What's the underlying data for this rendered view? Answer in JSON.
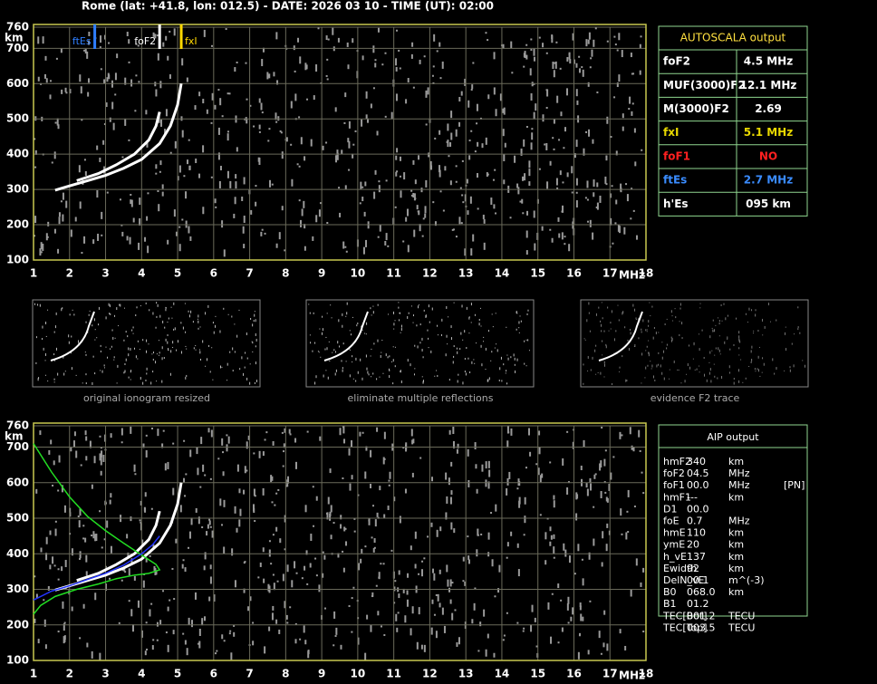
{
  "header": {
    "title": "Rome (lat: +41.8, lon: 012.5) - DATE: 2026 03 10 - TIME (UT): 02:00"
  },
  "chart_data": [
    {
      "type": "line",
      "x_label": "MHz",
      "y_label": "km",
      "xlim": [
        1,
        18
      ],
      "xticks": [
        1,
        2,
        3,
        4,
        5,
        6,
        7,
        8,
        9,
        10,
        11,
        12,
        13,
        14,
        15,
        16,
        17,
        18
      ],
      "ylim": [
        100,
        760
      ],
      "yticks": [
        100,
        200,
        300,
        400,
        500,
        600,
        700,
        760
      ],
      "grid": true,
      "markers": [
        {
          "name": "ftEs",
          "x": 2.7,
          "color": "#2f7fff"
        },
        {
          "name": "foF2",
          "x": 4.5,
          "color": "#ffffff"
        },
        {
          "name": "fxI",
          "x": 5.1,
          "color": "#ffd800"
        }
      ],
      "series": [
        {
          "color": "#ffffff",
          "x": [
            1.6,
            2,
            2.5,
            3,
            3.5,
            4,
            4.5,
            4.8,
            5,
            5.1
          ],
          "values": [
            298,
            310,
            325,
            340,
            360,
            385,
            430,
            480,
            540,
            600
          ]
        },
        {
          "color": "#ffffff",
          "x": [
            2.2,
            2.8,
            3.3,
            3.8,
            4.2,
            4.4,
            4.5
          ],
          "values": [
            325,
            345,
            370,
            400,
            440,
            480,
            520
          ]
        }
      ]
    },
    {
      "type": "line",
      "x_label": "MHz",
      "y_label": "km",
      "xlim": [
        1,
        18
      ],
      "xticks": [
        1,
        2,
        3,
        4,
        5,
        6,
        7,
        8,
        9,
        10,
        11,
        12,
        13,
        14,
        15,
        16,
        17,
        18
      ],
      "ylim": [
        100,
        760
      ],
      "yticks": [
        100,
        200,
        300,
        400,
        500,
        600,
        700,
        760
      ],
      "grid": true,
      "series": [
        {
          "color": "#ffffff",
          "x": [
            1.6,
            2,
            2.5,
            3,
            3.5,
            4,
            4.5,
            4.8,
            5,
            5.1
          ],
          "values": [
            298,
            310,
            325,
            340,
            360,
            385,
            430,
            480,
            540,
            600
          ]
        },
        {
          "color": "#ffffff",
          "x": [
            2.2,
            2.8,
            3.3,
            3.8,
            4.2,
            4.4,
            4.5
          ],
          "values": [
            325,
            345,
            370,
            400,
            440,
            480,
            520
          ]
        },
        {
          "color": "#22dd22",
          "x": [
            1,
            1.5,
            2,
            2.5,
            3,
            3.5,
            3.8,
            4.1,
            4.4,
            4.5,
            4.2,
            3.8,
            3.3,
            2.8,
            2.2,
            1.6,
            1.2,
            1
          ],
          "values": [
            710,
            630,
            560,
            505,
            465,
            430,
            410,
            390,
            370,
            355,
            345,
            340,
            330,
            315,
            300,
            280,
            255,
            230
          ]
        },
        {
          "color": "#2233ff",
          "x": [
            1,
            1.5,
            2,
            2.5,
            3,
            3.5,
            4,
            4.3,
            4.5
          ],
          "values": [
            270,
            295,
            310,
            328,
            345,
            368,
            400,
            425,
            450
          ]
        }
      ]
    }
  ],
  "thumbnails": [
    "original ionogram resized",
    "eliminate multiple reflections",
    "evidence F2 trace"
  ],
  "autoscala": {
    "title": "AUTOSCALA output",
    "rows": [
      {
        "label": "foF2",
        "value": "4.5 MHz",
        "color": "#ffffff"
      },
      {
        "label": "MUF(3000)F2",
        "value": "12.1 MHz",
        "color": "#ffffff"
      },
      {
        "label": "M(3000)F2",
        "value": "2.69",
        "color": "#ffffff"
      },
      {
        "label": "fxI",
        "value": "5.1 MHz",
        "color": "#e8d800"
      },
      {
        "label": "foF1",
        "value": "NO",
        "color": "#ff2020"
      },
      {
        "label": "ftEs",
        "value": "2.7 MHz",
        "color": "#3a8cff"
      },
      {
        "label": "h'Es",
        "value": "095    km",
        "color": "#ffffff"
      }
    ]
  },
  "aip": {
    "title": "AIP output",
    "rows": [
      [
        "hmF2",
        "340",
        "km"
      ],
      [
        "foF2",
        "04.5",
        "MHz"
      ],
      [
        "foF1",
        "00.0",
        "MHz",
        "[PN]"
      ],
      [
        "hmF1",
        "---",
        "km"
      ],
      [
        "D1",
        "00.0"
      ],
      [
        "foE",
        "0.7",
        "MHz"
      ],
      [
        "hmE",
        "110",
        "km"
      ],
      [
        "ymE",
        "20",
        "km"
      ],
      [
        "h_vE",
        "137",
        "km"
      ],
      [
        "Ewidth",
        "92",
        "km"
      ],
      [
        "DelN_vE",
        "00.1",
        "m^(-3)"
      ],
      [
        "B0",
        "068.0",
        "km"
      ],
      [
        "B1",
        "01.2"
      ],
      [
        "TEC[Bot]",
        "001.2",
        "TECU"
      ],
      [
        "TEC[Top]",
        "003.5",
        "TECU"
      ]
    ]
  }
}
